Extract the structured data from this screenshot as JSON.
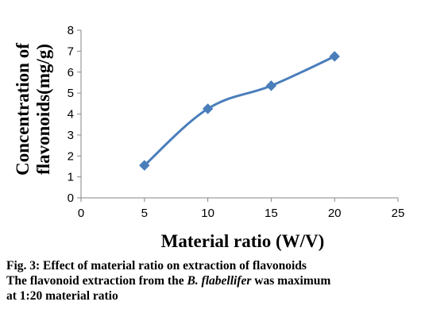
{
  "chart_data": {
    "type": "line",
    "title": "",
    "xlabel": "Material ratio (W/V)",
    "ylabel": [
      "Concentration of",
      "flavonoids(mg/g)"
    ],
    "x": [
      5,
      10,
      15,
      20
    ],
    "series": [
      {
        "values": [
          1.55,
          4.25,
          5.35,
          6.75
        ],
        "color": "#4a7ebb",
        "marker": "diamond",
        "smooth": true
      }
    ],
    "xlim": [
      0,
      25
    ],
    "ylim": [
      0,
      8
    ],
    "xticks": [
      0,
      5,
      10,
      15,
      20,
      25
    ],
    "yticks": [
      0,
      1,
      2,
      3,
      4,
      5,
      6,
      7,
      8
    ],
    "grid": false,
    "legend": "none"
  },
  "caption": {
    "figure": "Fig. 3: Effect of material ratio on extraction of flavonoids",
    "note_before": "The flavonoid extraction from the ",
    "note_species": "B. flabellifer",
    "note_after": " was maximum",
    "note_line2": "at 1:20 material ratio"
  }
}
